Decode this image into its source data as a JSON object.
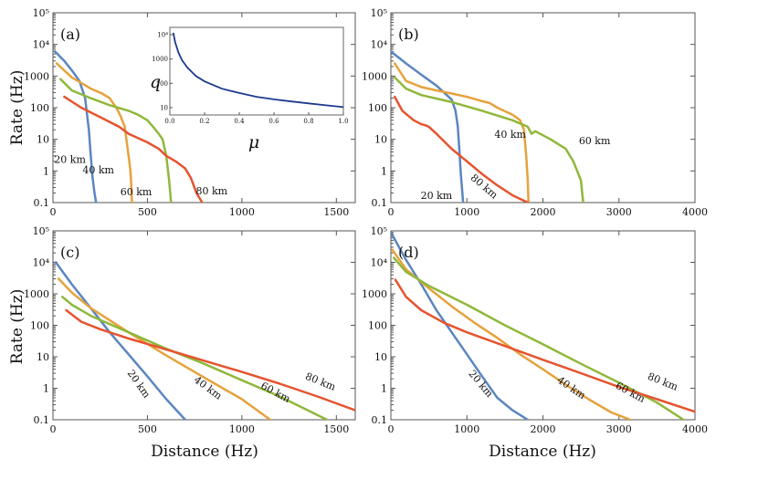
{
  "colors": {
    "20 km": "#5b86c0",
    "40 km": "#e6a23c",
    "60 km": "#8fb83a",
    "80 km": "#e5542f",
    "inset": "#1c3a8e"
  },
  "axis_text": {
    "ylabel": "Rate (Hz)",
    "xlabel": "Distance (Hz)"
  },
  "chart_data": [
    {
      "panel": "a",
      "tag": "(a)",
      "type": "line",
      "xlabel": "",
      "ylabel": "Rate (Hz)",
      "xlim": [
        0,
        1600
      ],
      "ylim": [
        0.1,
        100000
      ],
      "yscale": "log",
      "xticks": [
        0,
        500,
        1000,
        1500
      ],
      "yticks": [
        0.1,
        1,
        10,
        100,
        1000,
        10000,
        100000
      ],
      "yticklabels": [
        "0.1",
        "1",
        "10",
        "100",
        "1000",
        "10⁴",
        "10⁵"
      ],
      "series": [
        {
          "name": "20 km",
          "label": "20 km",
          "x": [
            10,
            60,
            100,
            140,
            170,
            190,
            200,
            210,
            220,
            228
          ],
          "y": [
            6000,
            3000,
            1500,
            700,
            200,
            20,
            3,
            0.6,
            0.2,
            0.1
          ]
        },
        {
          "name": "40 km",
          "label": "40 km",
          "x": [
            20,
            100,
            200,
            260,
            300,
            340,
            360,
            380,
            400,
            410,
            415,
            418
          ],
          "y": [
            2500,
            900,
            400,
            280,
            200,
            90,
            50,
            25,
            3,
            1,
            0.3,
            0.1
          ]
        },
        {
          "name": "60 km",
          "label": "60 km",
          "x": [
            40,
            100,
            200,
            300,
            400,
            450,
            500,
            530,
            560,
            580,
            600,
            615,
            625
          ],
          "y": [
            800,
            350,
            200,
            120,
            80,
            60,
            40,
            25,
            15,
            10,
            3,
            0.5,
            0.1
          ]
        },
        {
          "name": "80 km",
          "label": "80 km",
          "x": [
            60,
            150,
            250,
            350,
            400,
            500,
            560,
            600,
            650,
            700,
            730,
            760,
            790
          ],
          "y": [
            220,
            100,
            50,
            25,
            15,
            8,
            5,
            3,
            2,
            1.2,
            0.6,
            0.2,
            0.1
          ]
        }
      ],
      "label_positions": [
        {
          "series": "20 km",
          "x": 90,
          "y": 1.8
        },
        {
          "series": "40 km",
          "x": 240,
          "y": 0.85
        },
        {
          "series": "60 km",
          "x": 440,
          "y": 0.17
        },
        {
          "series": "80 km",
          "x": 840,
          "y": 0.18
        }
      ],
      "inset": {
        "type": "line",
        "xlabel": "μ",
        "ylabel": "q",
        "xlim": [
          0,
          1
        ],
        "ylim": [
          5,
          20000
        ],
        "yscale": "log",
        "xticks": [
          0,
          0.2,
          0.4,
          0.6,
          0.8,
          1
        ],
        "xticklabels": [
          "0.0",
          "0.2",
          "0.4",
          "0.6",
          "0.8",
          "1.0"
        ],
        "yticks": [
          10,
          100,
          1000,
          10000
        ],
        "yticklabels": [
          "10",
          "100",
          "1000",
          "10⁴"
        ],
        "x": [
          0.02,
          0.03,
          0.05,
          0.07,
          0.1,
          0.15,
          0.2,
          0.3,
          0.4,
          0.5,
          0.6,
          0.7,
          0.8,
          0.9,
          1.0
        ],
        "y": [
          12000,
          5000,
          1800,
          900,
          450,
          200,
          120,
          60,
          40,
          28,
          22,
          18,
          15,
          12.5,
          10.5
        ]
      }
    },
    {
      "panel": "b",
      "tag": "(b)",
      "type": "line",
      "xlabel": "",
      "ylabel": "",
      "xlim": [
        0,
        4000
      ],
      "ylim": [
        0.1,
        100000
      ],
      "yscale": "log",
      "xticks": [
        0,
        1000,
        2000,
        3000,
        4000
      ],
      "yticks": [
        0.1,
        1,
        10,
        100,
        1000,
        10000,
        100000
      ],
      "yticklabels": [
        "0.1",
        "1",
        "10",
        "100",
        "1000",
        "10⁴",
        "10⁵"
      ],
      "series": [
        {
          "name": "20 km",
          "label": "20 km",
          "x": [
            0,
            200,
            400,
            600,
            800,
            850,
            880,
            900,
            920,
            940,
            950
          ],
          "y": [
            6000,
            2500,
            1100,
            500,
            180,
            80,
            25,
            5,
            0.8,
            0.2,
            0.1
          ]
        },
        {
          "name": "40 km",
          "label": "40 km",
          "x": [
            50,
            200,
            400,
            600,
            800,
            1000,
            1200,
            1300,
            1400,
            1600,
            1700,
            1750,
            1780,
            1800,
            1810
          ],
          "y": [
            2500,
            700,
            450,
            350,
            280,
            220,
            160,
            140,
            100,
            60,
            40,
            20,
            3,
            0.5,
            0.1
          ]
        },
        {
          "name": "60 km",
          "label": "60 km",
          "x": [
            50,
            200,
            400,
            800,
            1200,
            1600,
            1800,
            1850,
            1900,
            2100,
            2300,
            2400,
            2450,
            2500,
            2530
          ],
          "y": [
            900,
            400,
            250,
            150,
            80,
            40,
            25,
            15,
            18,
            10,
            5,
            2,
            1,
            0.5,
            0.1
          ]
        },
        {
          "name": "80 km",
          "label": "80 km",
          "x": [
            50,
            150,
            300,
            400,
            450,
            500,
            600,
            800,
            1000,
            1200,
            1400,
            1600,
            1800
          ],
          "y": [
            220,
            80,
            40,
            30,
            28,
            25,
            15,
            5,
            2,
            0.8,
            0.35,
            0.17,
            0.1
          ]
        }
      ],
      "label_positions": [
        {
          "series": "20 km",
          "x": 600,
          "y": 0.13
        },
        {
          "series": "40 km",
          "x": 1570,
          "y": 11
        },
        {
          "series": "60 km",
          "x": 2680,
          "y": 7
        },
        {
          "series": "80 km",
          "x": 1200,
          "y": 0.27
        }
      ]
    },
    {
      "panel": "c",
      "tag": "(c)",
      "type": "line",
      "xlabel": "Distance (Hz)",
      "ylabel": "Rate (Hz)",
      "xlim": [
        0,
        1600
      ],
      "ylim": [
        0.1,
        100000
      ],
      "yscale": "log",
      "xticks": [
        0,
        500,
        1000,
        1500
      ],
      "yticks": [
        0.1,
        1,
        10,
        100,
        1000,
        10000,
        100000
      ],
      "yticklabels": [
        "0.1",
        "1",
        "10",
        "100",
        "1000",
        "10⁴",
        "10⁵"
      ],
      "series": [
        {
          "name": "20 km",
          "label": "20 km",
          "x": [
            15,
            100,
            200,
            300,
            400,
            500,
            600,
            700
          ],
          "y": [
            10000,
            2000,
            350,
            60,
            12,
            2.4,
            0.45,
            0.1
          ]
        },
        {
          "name": "40 km",
          "label": "40 km",
          "x": [
            30,
            100,
            200,
            400,
            600,
            800,
            1000,
            1150
          ],
          "y": [
            3000,
            1100,
            350,
            60,
            11,
            2.2,
            0.45,
            0.1
          ]
        },
        {
          "name": "60 km",
          "label": "60 km",
          "x": [
            50,
            100,
            200,
            400,
            600,
            800,
            1000,
            1200,
            1450
          ],
          "y": [
            800,
            450,
            200,
            60,
            18,
            6,
            1.8,
            0.55,
            0.1
          ]
        },
        {
          "name": "80 km",
          "label": "80 km",
          "x": [
            70,
            150,
            250,
            400,
            600,
            800,
            1000,
            1200,
            1400,
            1600
          ],
          "y": [
            300,
            130,
            75,
            38,
            17,
            7.5,
            3.3,
            1.4,
            0.55,
            0.2
          ]
        }
      ],
      "label_positions": [
        {
          "series": "20 km",
          "x": 440,
          "y": 1.2
        },
        {
          "series": "40 km",
          "x": 810,
          "y": 0.85
        },
        {
          "series": "60 km",
          "x": 1170,
          "y": 0.6
        },
        {
          "series": "80 km",
          "x": 1410,
          "y": 1.3
        }
      ]
    },
    {
      "panel": "d",
      "tag": "(d)",
      "type": "line",
      "xlabel": "Distance (Hz)",
      "ylabel": "",
      "xlim": [
        0,
        4000
      ],
      "ylim": [
        0.1,
        100000
      ],
      "yscale": "log",
      "xticks": [
        0,
        1000,
        2000,
        3000,
        4000
      ],
      "yticks": [
        0.1,
        1,
        10,
        100,
        1000,
        10000,
        100000
      ],
      "yticklabels": [
        "0.1",
        "1",
        "10",
        "100",
        "1000",
        "10⁴",
        "10⁵"
      ],
      "series": [
        {
          "name": "20 km",
          "label": "20 km",
          "x": [
            0,
            200,
            400,
            600,
            800,
            1000,
            1200,
            1400,
            1600,
            1800
          ],
          "y": [
            90000,
            12000,
            2000,
            300,
            60,
            12,
            2.4,
            0.5,
            0.2,
            0.1
          ]
        },
        {
          "name": "40 km",
          "label": "40 km",
          "x": [
            20,
            200,
            500,
            800,
            1100,
            1400,
            1700,
            2000,
            2300,
            2600,
            2900,
            3150
          ],
          "y": [
            25000,
            6000,
            1500,
            400,
            120,
            40,
            12,
            4,
            1.3,
            0.45,
            0.17,
            0.1
          ]
        },
        {
          "name": "60 km",
          "label": "60 km",
          "x": [
            40,
            200,
            500,
            1000,
            1500,
            2000,
            2500,
            3000,
            3500,
            3850
          ],
          "y": [
            14000,
            5000,
            1800,
            450,
            100,
            25,
            6,
            1.5,
            0.35,
            0.1
          ]
        },
        {
          "name": "80 km",
          "label": "80 km",
          "x": [
            60,
            200,
            400,
            700,
            1000,
            1500,
            2000,
            2500,
            3000,
            3500,
            4000
          ],
          "y": [
            2800,
            800,
            300,
            120,
            60,
            22,
            8,
            3,
            1.1,
            0.45,
            0.18
          ]
        }
      ],
      "label_positions": [
        {
          "series": "20 km",
          "x": 1150,
          "y": 1.2
        },
        {
          "series": "40 km",
          "x": 2350,
          "y": 0.85
        },
        {
          "series": "60 km",
          "x": 3130,
          "y": 0.6
        },
        {
          "series": "80 km",
          "x": 3560,
          "y": 1.3
        }
      ]
    }
  ]
}
